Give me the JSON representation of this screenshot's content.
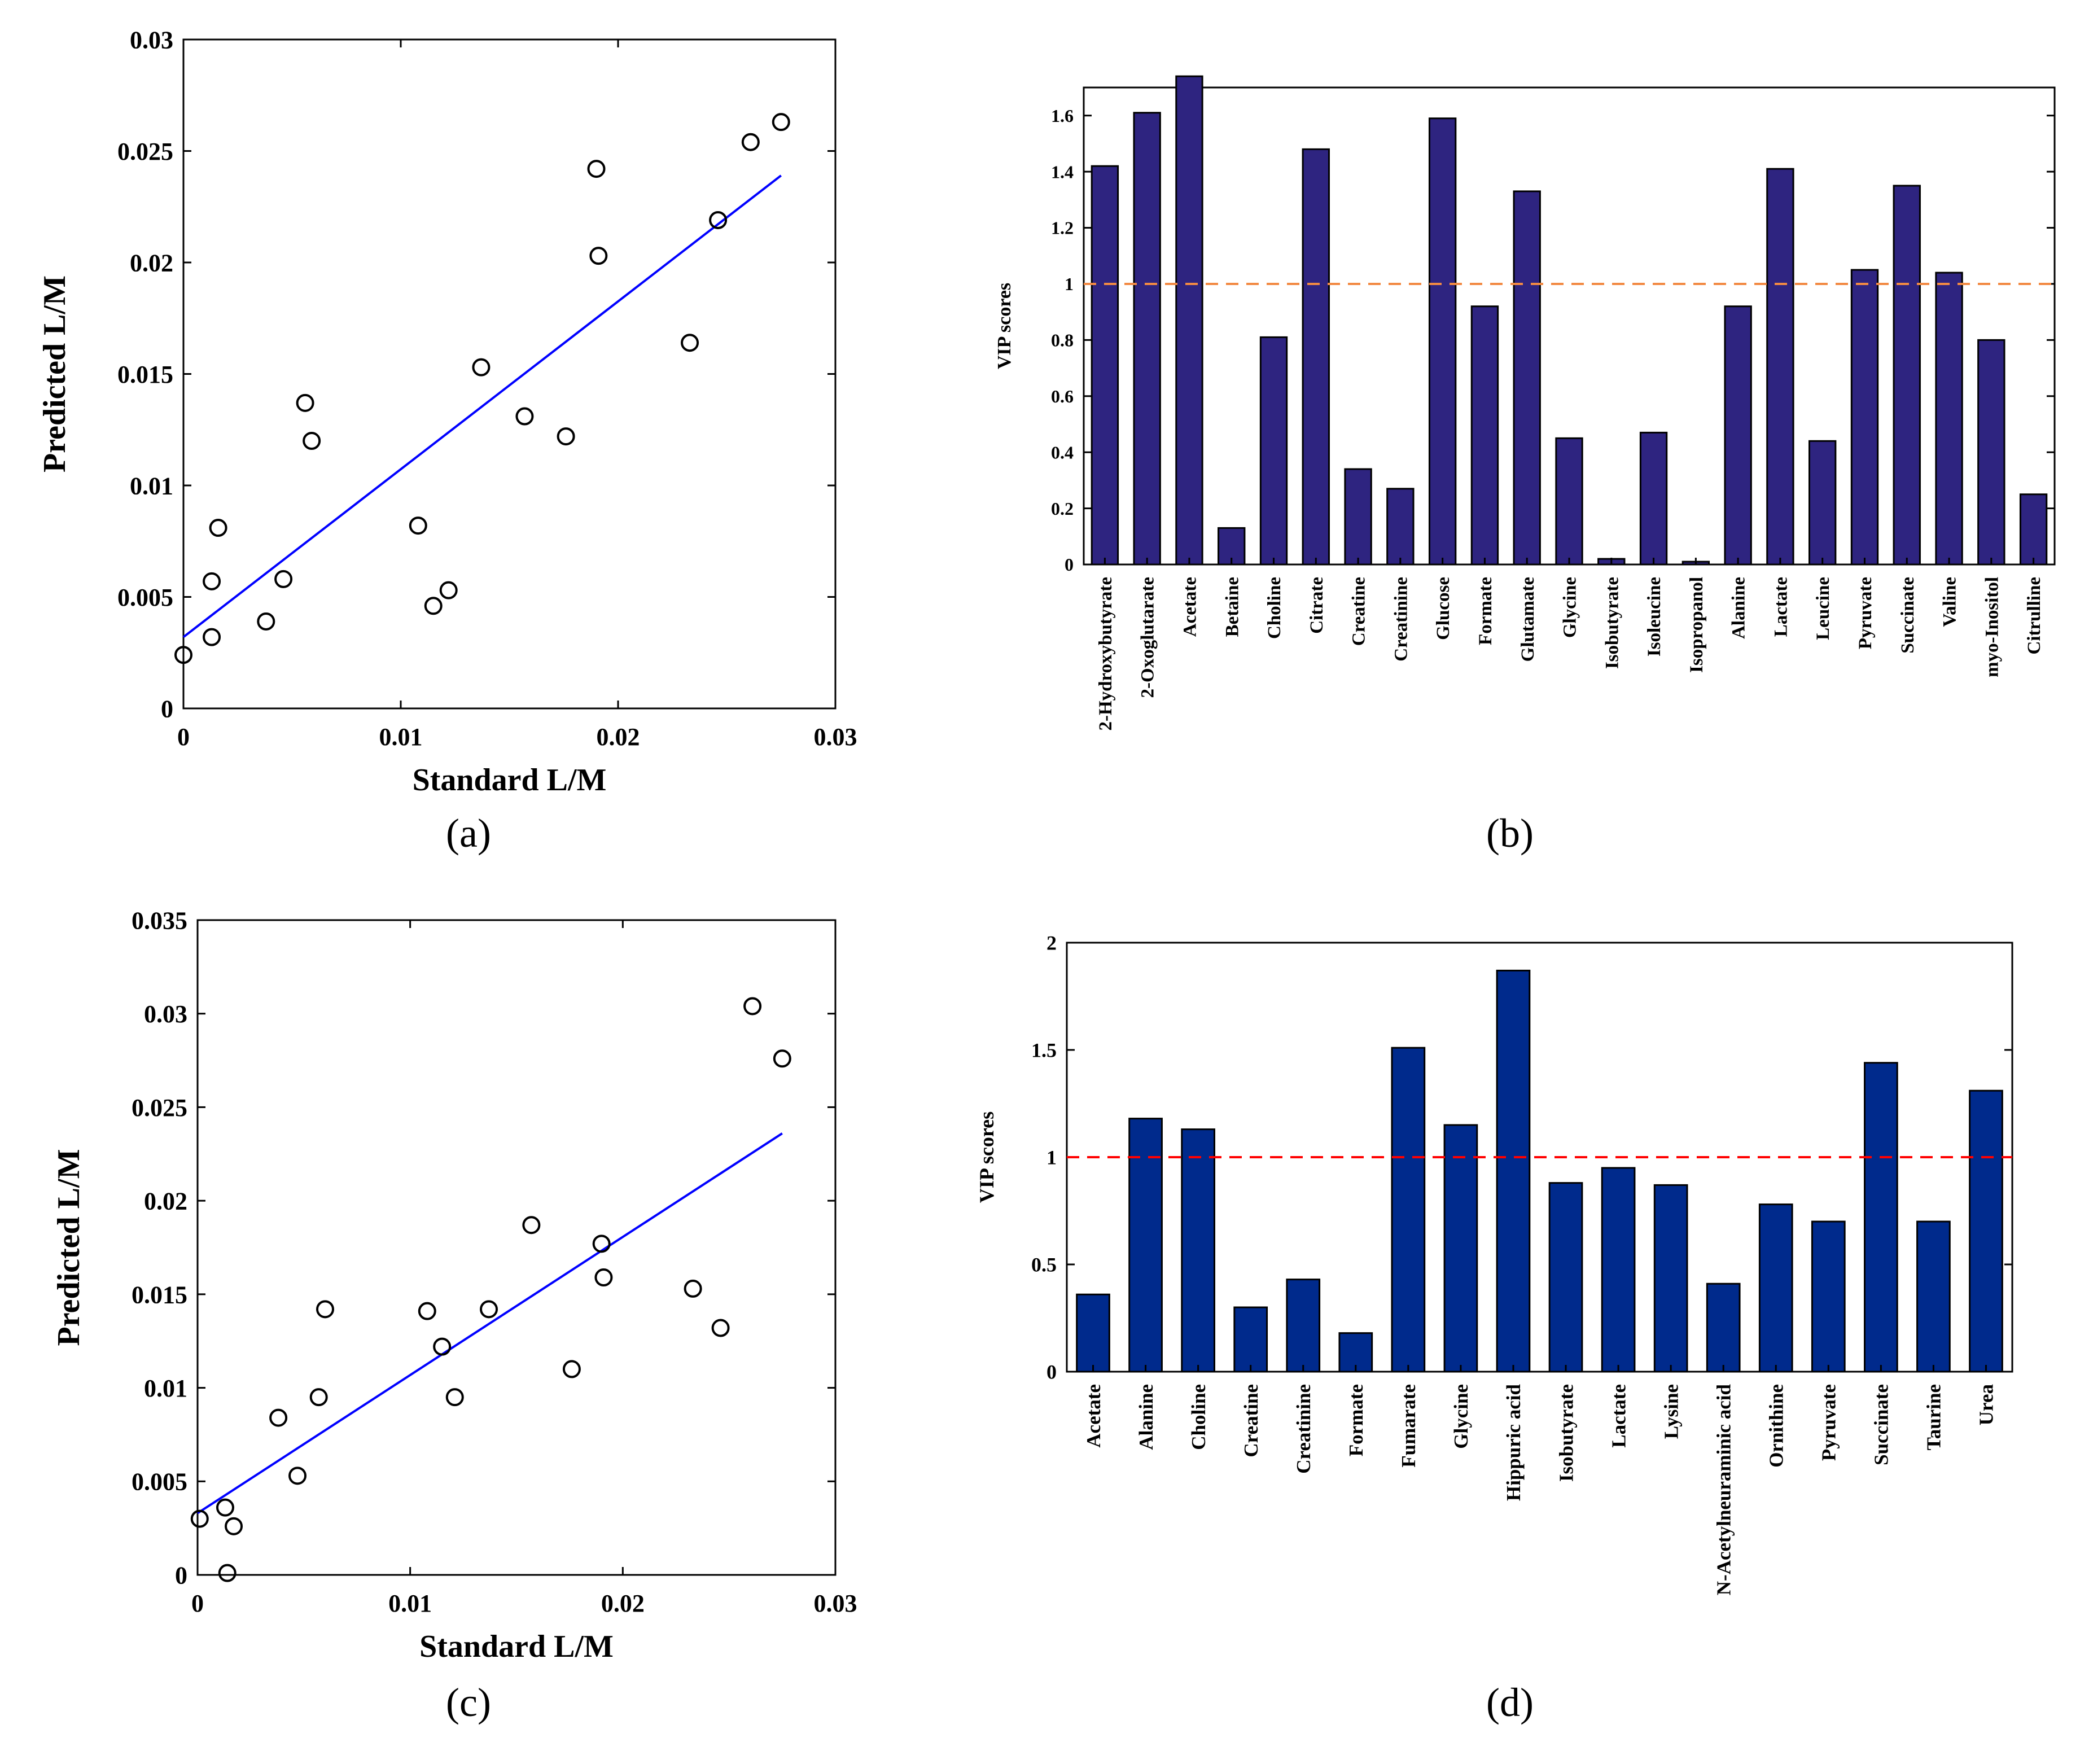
{
  "chart_data": [
    {
      "type": "scatter",
      "panel": "(a)",
      "xlabel": "Standard L/M",
      "ylabel": "Predicted  L/M",
      "xlim": [
        0,
        0.03
      ],
      "ylim": [
        0,
        0.03
      ],
      "xticks": [
        "0",
        "0.01",
        "0.02",
        "0.03"
      ],
      "yticks": [
        "0",
        "0.005",
        "0.01",
        "0.015",
        "0.02",
        "0.025",
        "0.03"
      ],
      "points": [
        [
          0.0,
          0.0024
        ],
        [
          0.0013,
          0.0032
        ],
        [
          0.0013,
          0.0057
        ],
        [
          0.0016,
          0.0081
        ],
        [
          0.0038,
          0.0039
        ],
        [
          0.0046,
          0.0058
        ],
        [
          0.0056,
          0.0137
        ],
        [
          0.0059,
          0.012
        ],
        [
          0.0108,
          0.0082
        ],
        [
          0.0115,
          0.0046
        ],
        [
          0.0122,
          0.0053
        ],
        [
          0.0137,
          0.0153
        ],
        [
          0.0157,
          0.0131
        ],
        [
          0.0176,
          0.0122
        ],
        [
          0.019,
          0.0242
        ],
        [
          0.0191,
          0.0203
        ],
        [
          0.0233,
          0.0164
        ],
        [
          0.0246,
          0.0219
        ],
        [
          0.0261,
          0.0254
        ],
        [
          0.0275,
          0.0263
        ]
      ],
      "fit_line": [
        [
          0.0,
          0.0032
        ],
        [
          0.0275,
          0.0239
        ]
      ],
      "fit_color": "#0000ff"
    },
    {
      "type": "bar",
      "panel": "(b)",
      "ylabel": "VIP scores",
      "ylim": [
        0,
        1.7
      ],
      "yticks": [
        "0",
        "0.2",
        "0.4",
        "0.6",
        "0.8",
        "1",
        "1.2",
        "1.4",
        "1.6"
      ],
      "threshold": 1,
      "threshold_color": "#f28a43",
      "bar_color": "#2e2480",
      "categories": [
        "2-Hydroxybutyrate",
        "2-Oxoglutarate",
        "Acetate",
        "Betaine",
        "Choline",
        "Citrate",
        "Creatine",
        "Creatinine",
        "Glucose",
        "Formate",
        "Glutamate",
        "Glycine",
        "Isobutyrate",
        "Isoleucine",
        "Isopropanol",
        "Alanine",
        "Lactate",
        "Leucine",
        "Pyruvate",
        "Succinate",
        "Valine",
        "myo-Inositol",
        "Citrulline"
      ],
      "values": [
        1.42,
        1.61,
        1.74,
        0.13,
        0.81,
        1.48,
        0.34,
        0.27,
        1.59,
        0.92,
        1.33,
        0.45,
        0.02,
        0.47,
        0.01,
        0.92,
        1.41,
        0.44,
        1.05,
        1.35,
        1.04,
        0.8,
        0.25
      ]
    },
    {
      "type": "scatter",
      "panel": "(c)",
      "xlabel": "Standard L/M",
      "ylabel": "Predicted L/M",
      "xlim": [
        0,
        0.03
      ],
      "ylim": [
        0,
        0.035
      ],
      "xticks": [
        "0",
        "0.01",
        "0.02",
        "0.03"
      ],
      "yticks": [
        "0",
        "0.005",
        "0.01",
        "0.015",
        "0.02",
        "0.025",
        "0.03",
        "0.035"
      ],
      "points": [
        [
          0.0001,
          0.003
        ],
        [
          0.0013,
          0.0036
        ],
        [
          0.0014,
          0.0001
        ],
        [
          0.0017,
          0.0026
        ],
        [
          0.0038,
          0.0084
        ],
        [
          0.0047,
          0.0053
        ],
        [
          0.0057,
          0.0095
        ],
        [
          0.006,
          0.0142
        ],
        [
          0.0108,
          0.0141
        ],
        [
          0.0115,
          0.0122
        ],
        [
          0.0121,
          0.0095
        ],
        [
          0.0137,
          0.0142
        ],
        [
          0.0157,
          0.0187
        ],
        [
          0.0176,
          0.011
        ],
        [
          0.019,
          0.0177
        ],
        [
          0.0191,
          0.0159
        ],
        [
          0.0233,
          0.0153
        ],
        [
          0.0246,
          0.0132
        ],
        [
          0.0261,
          0.0304
        ],
        [
          0.0275,
          0.0276
        ]
      ],
      "fit_line": [
        [
          0.0,
          0.0033
        ],
        [
          0.0275,
          0.0236
        ]
      ],
      "fit_color": "#0000ff"
    },
    {
      "type": "bar",
      "panel": "(d)",
      "ylabel": "VIP scores",
      "ylim": [
        0,
        2
      ],
      "yticks": [
        "0",
        "0.5",
        "1",
        "1.5",
        "2"
      ],
      "threshold": 1,
      "threshold_color": "#ff0000",
      "bar_color": "#002a8c",
      "categories": [
        "Acetate",
        "Alanine",
        "Choline",
        "Creatine",
        "Creatinine",
        "Formate",
        "Fumarate",
        "Glycine",
        "Hippuric acid",
        "Isobutyrate",
        "Lactate",
        "Lysine",
        "N-Acetylneuraminic acid",
        "Ornithine",
        "Pyruvate",
        "Succinate",
        "Taurine",
        "Urea"
      ],
      "values": [
        0.36,
        1.18,
        1.13,
        0.3,
        0.43,
        0.18,
        1.51,
        1.15,
        1.87,
        0.88,
        0.95,
        0.87,
        0.41,
        0.78,
        0.7,
        1.44,
        0.7,
        1.31
      ]
    }
  ]
}
